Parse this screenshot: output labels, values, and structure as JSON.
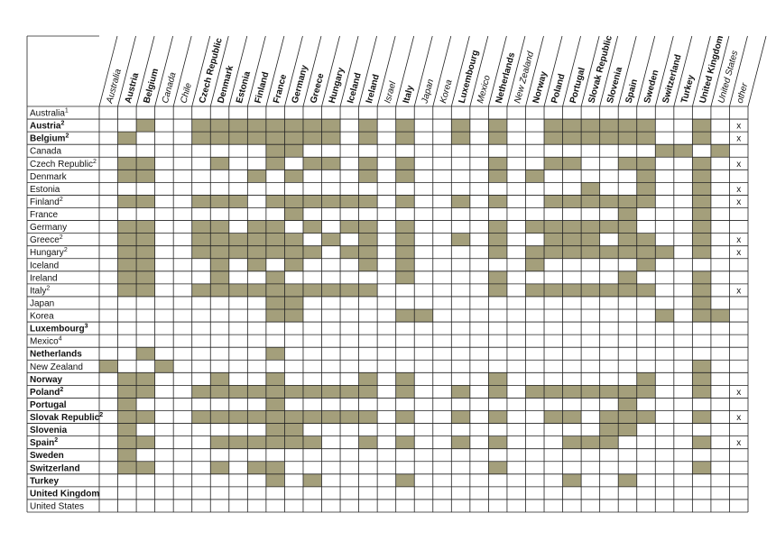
{
  "columns": [
    {
      "label": "Australia",
      "bold": false
    },
    {
      "label": "Austria",
      "bold": true
    },
    {
      "label": "Belgium",
      "bold": true
    },
    {
      "label": "Canada",
      "bold": false
    },
    {
      "label": "Chile",
      "bold": false
    },
    {
      "label": "Czech Republic",
      "bold": true
    },
    {
      "label": "Denmark",
      "bold": true
    },
    {
      "label": "Estonia",
      "bold": true
    },
    {
      "label": "Finland",
      "bold": true
    },
    {
      "label": "France",
      "bold": true
    },
    {
      "label": "Germany",
      "bold": true
    },
    {
      "label": "Greece",
      "bold": true
    },
    {
      "label": "Hungary",
      "bold": true
    },
    {
      "label": "Iceland",
      "bold": true
    },
    {
      "label": "Ireland",
      "bold": true
    },
    {
      "label": "Israel",
      "bold": false
    },
    {
      "label": "Italy",
      "bold": true
    },
    {
      "label": "Japan",
      "bold": false
    },
    {
      "label": "Korea",
      "bold": false
    },
    {
      "label": "Luxembourg",
      "bold": true
    },
    {
      "label": "Mexico",
      "bold": false
    },
    {
      "label": "Netherlands",
      "bold": true
    },
    {
      "label": "New Zealand",
      "bold": false
    },
    {
      "label": "Norway",
      "bold": true
    },
    {
      "label": "Poland",
      "bold": true
    },
    {
      "label": "Portugal",
      "bold": true
    },
    {
      "label": "Slovak Republic",
      "bold": true
    },
    {
      "label": "Slovenia",
      "bold": true
    },
    {
      "label": "Spain",
      "bold": true
    },
    {
      "label": "Sweden",
      "bold": true
    },
    {
      "label": "Switzerland",
      "bold": true
    },
    {
      "label": "Turkey",
      "bold": true
    },
    {
      "label": "United Kingdom",
      "bold": true
    },
    {
      "label": "United States",
      "bold": false
    },
    {
      "label": "other",
      "bold": false
    }
  ],
  "shade_color": "#a49f7b",
  "rows": [
    {
      "label": "Australia",
      "note": "1",
      "bold": false,
      "cells": [
        0,
        0,
        0,
        0,
        0,
        0,
        0,
        0,
        0,
        0,
        0,
        0,
        0,
        0,
        0,
        0,
        0,
        0,
        0,
        0,
        0,
        0,
        0,
        0,
        0,
        0,
        0,
        0,
        0,
        0,
        0,
        0,
        0,
        0
      ]
    },
    {
      "label": "Austria",
      "note": "2",
      "bold": true,
      "other": "x",
      "cells": [
        0,
        0,
        1,
        0,
        0,
        1,
        1,
        1,
        1,
        1,
        1,
        1,
        1,
        0,
        1,
        0,
        1,
        0,
        0,
        1,
        0,
        1,
        0,
        0,
        1,
        1,
        1,
        1,
        1,
        1,
        0,
        0,
        1,
        0
      ]
    },
    {
      "label": "Belgium",
      "note": "2",
      "bold": true,
      "other": "x",
      "cells": [
        0,
        1,
        0,
        0,
        0,
        1,
        1,
        1,
        1,
        1,
        1,
        1,
        1,
        0,
        1,
        0,
        1,
        0,
        0,
        1,
        0,
        1,
        0,
        0,
        1,
        1,
        1,
        1,
        1,
        1,
        0,
        0,
        1,
        0
      ]
    },
    {
      "label": "Canada",
      "bold": false,
      "cells": [
        0,
        0,
        0,
        0,
        0,
        0,
        0,
        0,
        0,
        1,
        1,
        0,
        0,
        0,
        0,
        0,
        0,
        0,
        0,
        0,
        0,
        0,
        0,
        0,
        0,
        0,
        0,
        0,
        0,
        0,
        1,
        1,
        0,
        1
      ]
    },
    {
      "label": "Czech Republic",
      "note": "2",
      "bold": false,
      "other": "x",
      "cells": [
        0,
        1,
        1,
        0,
        0,
        0,
        1,
        0,
        0,
        1,
        0,
        1,
        1,
        0,
        1,
        0,
        1,
        0,
        0,
        0,
        0,
        1,
        0,
        0,
        1,
        1,
        0,
        0,
        1,
        1,
        0,
        0,
        1,
        0
      ]
    },
    {
      "label": "Denmark",
      "bold": false,
      "cells": [
        0,
        1,
        1,
        0,
        0,
        0,
        0,
        0,
        1,
        0,
        1,
        0,
        0,
        0,
        1,
        0,
        1,
        0,
        0,
        0,
        0,
        1,
        0,
        1,
        0,
        0,
        0,
        0,
        0,
        1,
        0,
        0,
        1,
        0
      ]
    },
    {
      "label": "Estonia",
      "bold": false,
      "other": "x",
      "cells": [
        0,
        0,
        0,
        0,
        0,
        0,
        0,
        0,
        0,
        0,
        0,
        0,
        0,
        0,
        0,
        0,
        0,
        0,
        0,
        0,
        0,
        0,
        0,
        0,
        0,
        0,
        1,
        0,
        0,
        1,
        0,
        0,
        1,
        0
      ]
    },
    {
      "label": "Finland",
      "note": "2",
      "bold": false,
      "other": "x",
      "cells": [
        0,
        1,
        1,
        0,
        0,
        1,
        1,
        1,
        0,
        1,
        1,
        1,
        1,
        1,
        1,
        0,
        1,
        0,
        0,
        1,
        0,
        1,
        0,
        0,
        1,
        1,
        1,
        1,
        1,
        1,
        0,
        0,
        1,
        0
      ]
    },
    {
      "label": "France",
      "bold": false,
      "cells": [
        0,
        0,
        0,
        0,
        0,
        0,
        0,
        0,
        0,
        0,
        1,
        0,
        0,
        0,
        0,
        0,
        0,
        0,
        0,
        0,
        0,
        0,
        0,
        0,
        0,
        0,
        0,
        0,
        1,
        0,
        0,
        0,
        1,
        0
      ]
    },
    {
      "label": "Germany",
      "bold": false,
      "cells": [
        0,
        1,
        1,
        0,
        0,
        1,
        1,
        0,
        1,
        1,
        0,
        1,
        0,
        1,
        1,
        0,
        1,
        0,
        0,
        0,
        0,
        1,
        0,
        1,
        1,
        1,
        1,
        1,
        1,
        0,
        0,
        0,
        1,
        0
      ]
    },
    {
      "label": "Greece",
      "note": "2",
      "bold": false,
      "other": "x",
      "cells": [
        0,
        1,
        1,
        0,
        0,
        1,
        1,
        1,
        1,
        1,
        1,
        0,
        1,
        0,
        1,
        0,
        1,
        0,
        0,
        1,
        0,
        1,
        0,
        0,
        1,
        1,
        1,
        0,
        1,
        1,
        0,
        0,
        1,
        0
      ]
    },
    {
      "label": "Hungary",
      "note": "2",
      "bold": false,
      "other": "x",
      "cells": [
        0,
        1,
        1,
        0,
        0,
        1,
        1,
        1,
        1,
        1,
        1,
        1,
        0,
        1,
        1,
        0,
        1,
        0,
        0,
        0,
        0,
        1,
        0,
        1,
        1,
        1,
        1,
        1,
        1,
        1,
        1,
        0,
        1,
        0
      ]
    },
    {
      "label": "Iceland",
      "bold": false,
      "cells": [
        0,
        1,
        1,
        0,
        0,
        0,
        1,
        0,
        1,
        0,
        1,
        0,
        0,
        0,
        1,
        0,
        1,
        0,
        0,
        0,
        0,
        0,
        0,
        1,
        0,
        0,
        0,
        0,
        0,
        1,
        0,
        0,
        0,
        0
      ]
    },
    {
      "label": "Ireland",
      "bold": false,
      "cells": [
        0,
        1,
        1,
        0,
        0,
        0,
        1,
        0,
        0,
        1,
        0,
        0,
        0,
        0,
        0,
        0,
        1,
        0,
        0,
        0,
        0,
        1,
        0,
        0,
        0,
        0,
        0,
        0,
        1,
        0,
        0,
        0,
        1,
        0
      ]
    },
    {
      "label": "Italy",
      "note": "2",
      "bold": false,
      "other": "x",
      "cells": [
        0,
        1,
        1,
        0,
        0,
        1,
        1,
        1,
        1,
        1,
        1,
        1,
        1,
        1,
        1,
        0,
        0,
        0,
        0,
        0,
        0,
        1,
        0,
        1,
        1,
        1,
        1,
        1,
        1,
        1,
        0,
        0,
        1,
        0
      ]
    },
    {
      "label": "Japan",
      "bold": false,
      "cells": [
        0,
        0,
        0,
        0,
        0,
        0,
        0,
        0,
        0,
        1,
        1,
        0,
        0,
        0,
        0,
        0,
        0,
        0,
        0,
        0,
        0,
        0,
        0,
        0,
        0,
        0,
        0,
        0,
        0,
        0,
        0,
        0,
        1,
        0
      ]
    },
    {
      "label": "Korea",
      "bold": false,
      "cells": [
        0,
        0,
        0,
        0,
        0,
        0,
        0,
        0,
        0,
        1,
        1,
        0,
        0,
        0,
        0,
        0,
        1,
        1,
        0,
        0,
        0,
        0,
        0,
        0,
        0,
        0,
        0,
        0,
        0,
        0,
        1,
        0,
        1,
        1
      ]
    },
    {
      "label": "Luxembourg",
      "note": "3",
      "bold": true,
      "cells": [
        0,
        0,
        0,
        0,
        0,
        0,
        0,
        0,
        0,
        0,
        0,
        0,
        0,
        0,
        0,
        0,
        0,
        0,
        0,
        0,
        0,
        0,
        0,
        0,
        0,
        0,
        0,
        0,
        0,
        0,
        0,
        0,
        0,
        0
      ]
    },
    {
      "label": "Mexico",
      "note": "4",
      "bold": false,
      "cells": [
        0,
        0,
        0,
        0,
        0,
        0,
        0,
        0,
        0,
        0,
        0,
        0,
        0,
        0,
        0,
        0,
        0,
        0,
        0,
        0,
        0,
        0,
        0,
        0,
        0,
        0,
        0,
        0,
        0,
        0,
        0,
        0,
        0,
        0
      ]
    },
    {
      "label": "Netherlands",
      "bold": true,
      "cells": [
        0,
        0,
        1,
        0,
        0,
        0,
        0,
        0,
        0,
        1,
        0,
        0,
        0,
        0,
        0,
        0,
        0,
        0,
        0,
        0,
        0,
        0,
        0,
        0,
        0,
        0,
        0,
        0,
        0,
        0,
        0,
        0,
        0,
        0
      ]
    },
    {
      "label": "New Zealand",
      "bold": false,
      "cells": [
        1,
        0,
        0,
        1,
        0,
        0,
        0,
        0,
        0,
        0,
        0,
        0,
        0,
        0,
        0,
        0,
        0,
        0,
        0,
        0,
        0,
        0,
        0,
        0,
        0,
        0,
        0,
        0,
        0,
        0,
        0,
        0,
        1,
        0
      ]
    },
    {
      "label": "Norway",
      "bold": true,
      "cells": [
        0,
        1,
        1,
        0,
        0,
        0,
        1,
        0,
        0,
        1,
        0,
        0,
        0,
        0,
        1,
        0,
        1,
        0,
        0,
        0,
        0,
        1,
        0,
        0,
        0,
        0,
        0,
        0,
        0,
        1,
        0,
        0,
        1,
        0
      ]
    },
    {
      "label": "Poland",
      "note": "2",
      "bold": true,
      "other": "x",
      "cells": [
        0,
        1,
        1,
        0,
        0,
        1,
        1,
        1,
        1,
        1,
        1,
        1,
        1,
        1,
        1,
        0,
        1,
        0,
        0,
        1,
        0,
        1,
        0,
        1,
        1,
        1,
        1,
        1,
        1,
        1,
        0,
        0,
        1,
        0
      ]
    },
    {
      "label": "Portugal",
      "bold": true,
      "cells": [
        0,
        1,
        0,
        0,
        0,
        0,
        0,
        0,
        0,
        1,
        0,
        0,
        0,
        0,
        0,
        0,
        0,
        0,
        0,
        0,
        0,
        0,
        0,
        0,
        0,
        0,
        0,
        0,
        1,
        0,
        0,
        0,
        0,
        0
      ]
    },
    {
      "label": "Slovak Republic",
      "note": "2",
      "bold": true,
      "other": "x",
      "cells": [
        0,
        1,
        1,
        0,
        0,
        1,
        1,
        1,
        1,
        1,
        1,
        1,
        1,
        1,
        1,
        0,
        1,
        0,
        0,
        1,
        0,
        1,
        0,
        0,
        1,
        1,
        0,
        1,
        1,
        1,
        0,
        0,
        1,
        0
      ]
    },
    {
      "label": "Slovenia",
      "bold": true,
      "cells": [
        0,
        1,
        0,
        0,
        0,
        0,
        0,
        0,
        0,
        1,
        1,
        0,
        0,
        0,
        0,
        0,
        0,
        0,
        0,
        0,
        0,
        0,
        0,
        0,
        0,
        0,
        0,
        1,
        1,
        0,
        0,
        0,
        0,
        0
      ]
    },
    {
      "label": "Spain",
      "note": "2",
      "bold": true,
      "other": "x",
      "cells": [
        0,
        1,
        1,
        0,
        0,
        0,
        1,
        1,
        1,
        1,
        1,
        1,
        0,
        0,
        1,
        0,
        1,
        0,
        0,
        1,
        0,
        1,
        0,
        0,
        0,
        1,
        1,
        1,
        0,
        0,
        0,
        0,
        1,
        0
      ]
    },
    {
      "label": "Sweden",
      "bold": true,
      "cells": [
        0,
        1,
        0,
        0,
        0,
        0,
        0,
        0,
        0,
        0,
        0,
        0,
        0,
        0,
        0,
        0,
        0,
        0,
        0,
        0,
        0,
        0,
        0,
        0,
        0,
        0,
        0,
        0,
        0,
        0,
        0,
        0,
        0,
        0
      ]
    },
    {
      "label": "Switzerland",
      "bold": true,
      "cells": [
        0,
        1,
        1,
        0,
        0,
        0,
        1,
        0,
        1,
        1,
        0,
        0,
        0,
        0,
        0,
        0,
        0,
        0,
        0,
        0,
        0,
        1,
        0,
        0,
        0,
        0,
        0,
        0,
        0,
        0,
        0,
        0,
        1,
        0
      ]
    },
    {
      "label": "Turkey",
      "bold": true,
      "cells": [
        0,
        0,
        0,
        0,
        0,
        0,
        0,
        0,
        0,
        1,
        0,
        1,
        0,
        0,
        0,
        0,
        1,
        0,
        0,
        0,
        0,
        0,
        0,
        0,
        0,
        1,
        0,
        0,
        1,
        0,
        0,
        0,
        0,
        0
      ]
    },
    {
      "label": "United Kingdom",
      "bold": true,
      "cells": [
        0,
        0,
        0,
        0,
        0,
        0,
        0,
        0,
        0,
        0,
        0,
        0,
        0,
        0,
        0,
        0,
        0,
        0,
        0,
        0,
        0,
        0,
        0,
        0,
        0,
        0,
        0,
        0,
        0,
        0,
        0,
        0,
        0,
        0
      ]
    },
    {
      "label": "United States",
      "bold": false,
      "cells": [
        0,
        0,
        0,
        0,
        0,
        0,
        0,
        0,
        0,
        0,
        0,
        0,
        0,
        0,
        0,
        0,
        0,
        0,
        0,
        0,
        0,
        0,
        0,
        0,
        0,
        0,
        0,
        0,
        0,
        0,
        0,
        0,
        0,
        0
      ]
    }
  ]
}
